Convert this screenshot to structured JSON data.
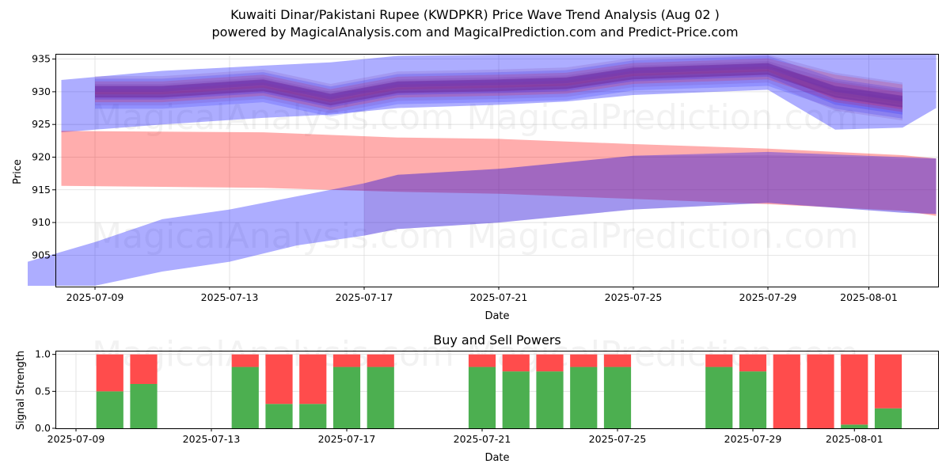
{
  "header": {
    "title_line1": "Kuwaiti Dinar/Pakistani Rupee (KWDPKR) Price Wave Trend Analysis (Aug 02 )",
    "title_line2": "powered by MagicalAnalysis.com and MagicalPrediction.com and Predict-Price.com"
  },
  "watermarks": [
    "MagicalAnalysis.com",
    "MagicalPrediction.com"
  ],
  "colors": {
    "upper_band": "#0000ff",
    "pink_band": "#ff0000",
    "purple_band": "#7030a0",
    "buy": "#4caf50",
    "sell": "#ff4c4c",
    "grid": "#dddddd"
  },
  "chart_data": [
    {
      "type": "area",
      "title": "",
      "xlabel": "Date",
      "ylabel": "Price",
      "ylim": [
        900.2,
        935.8
      ],
      "x_ticks": [
        "2025-07-09",
        "2025-07-13",
        "2025-07-17",
        "2025-07-21",
        "2025-07-25",
        "2025-07-29",
        "2025-08-01"
      ],
      "y_ticks": [
        905,
        910,
        915,
        920,
        925,
        930,
        935
      ],
      "grid": true,
      "series": [
        {
          "kind": "blue-upper-band",
          "x": [
            "2025-07-08",
            "2025-07-11",
            "2025-07-14",
            "2025-07-16",
            "2025-07-18",
            "2025-07-21",
            "2025-07-23",
            "2025-07-25",
            "2025-07-29",
            "2025-07-31",
            "2025-08-02",
            "2025-08-03"
          ],
          "upper": [
            931.8,
            933.2,
            934.0,
            934.5,
            935.5,
            935.8,
            935.8,
            935.8,
            935.8,
            935.8,
            935.8,
            935.8
          ],
          "lower": [
            923.8,
            925.0,
            926.0,
            926.5,
            927.5,
            928.0,
            928.5,
            929.5,
            930.3,
            924.2,
            924.5,
            927.5
          ]
        },
        {
          "kind": "pink-band",
          "x": [
            "2025-07-08",
            "2025-07-14",
            "2025-07-18",
            "2025-07-21",
            "2025-07-25",
            "2025-07-29",
            "2025-08-02",
            "2025-08-03"
          ],
          "upper": [
            924.0,
            923.8,
            923.0,
            922.8,
            922.0,
            921.3,
            920.3,
            919.8
          ],
          "lower": [
            915.6,
            915.3,
            914.7,
            914.4,
            913.6,
            912.8,
            911.8,
            911.0
          ]
        },
        {
          "kind": "blue-lower-band",
          "x": [
            "2025-07-07",
            "2025-07-09",
            "2025-07-11",
            "2025-07-13",
            "2025-07-15",
            "2025-07-17",
            "2025-07-18",
            "2025-07-21",
            "2025-07-25",
            "2025-07-29",
            "2025-08-02",
            "2025-08-03"
          ],
          "upper": [
            904.0,
            907.0,
            910.5,
            912.0,
            914.0,
            916.0,
            917.3,
            918.2,
            920.2,
            920.8,
            920.0,
            919.8
          ],
          "lower": [
            898.5,
            899.0,
            902.5,
            904.0,
            906.5,
            908.0,
            909.0,
            910.0,
            912.0,
            913.0,
            911.5,
            911.3
          ]
        },
        {
          "kind": "wave-stack",
          "x": [
            "2025-07-09",
            "2025-07-11",
            "2025-07-14",
            "2025-07-16",
            "2025-07-18",
            "2025-07-21",
            "2025-07-23",
            "2025-07-25",
            "2025-07-29",
            "2025-07-31",
            "2025-08-02"
          ],
          "center": [
            930.0,
            930.0,
            931.0,
            928.8,
            930.7,
            931.0,
            931.3,
            932.8,
            933.5,
            930.0,
            928.5
          ]
        }
      ]
    },
    {
      "type": "bar",
      "title": "Buy and Sell Powers",
      "xlabel": "Date",
      "ylabel": "Signal Strength",
      "ylim": [
        0,
        1.05
      ],
      "y_ticks": [
        0.0,
        0.5,
        1.0
      ],
      "x_ticks": [
        "2025-07-09",
        "2025-07-13",
        "2025-07-17",
        "2025-07-21",
        "2025-07-25",
        "2025-07-29",
        "2025-08-01"
      ],
      "categories": [
        "2025-07-10",
        "2025-07-11",
        "2025-07-14",
        "2025-07-15",
        "2025-07-16",
        "2025-07-17",
        "2025-07-18",
        "2025-07-21",
        "2025-07-22",
        "2025-07-23",
        "2025-07-24",
        "2025-07-25",
        "2025-07-28",
        "2025-07-29",
        "2025-07-30",
        "2025-07-31",
        "2025-08-01",
        "2025-08-02"
      ],
      "series": [
        {
          "name": "Buy",
          "values": [
            0.5,
            0.6,
            0.83,
            0.33,
            0.33,
            0.83,
            0.83,
            0.83,
            0.77,
            0.77,
            0.83,
            0.83,
            0.83,
            0.77,
            0.0,
            0.0,
            0.05,
            0.27
          ]
        },
        {
          "name": "Sell",
          "values": [
            0.5,
            0.4,
            0.17,
            0.67,
            0.67,
            0.17,
            0.17,
            0.17,
            0.23,
            0.23,
            0.17,
            0.17,
            0.17,
            0.23,
            1.0,
            1.0,
            0.95,
            0.73
          ]
        }
      ],
      "grid": true
    }
  ]
}
